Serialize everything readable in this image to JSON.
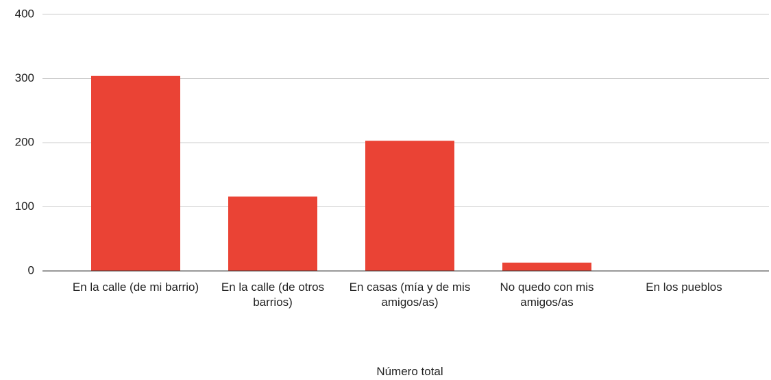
{
  "chart_data": {
    "type": "bar",
    "x_label": "Número total",
    "categories": [
      "En la calle (de mi barrio)",
      "En la calle (de otros barrios)",
      "En casas (mía y de mis amigos/as)",
      "No quedo con mis amigos/as",
      "En los pueblos"
    ],
    "values": [
      304,
      116,
      203,
      13,
      0
    ],
    "color": "#ea4335",
    "ylim": [
      0,
      400
    ],
    "yticks": [
      0,
      100,
      200,
      300,
      400
    ],
    "grid": true
  }
}
